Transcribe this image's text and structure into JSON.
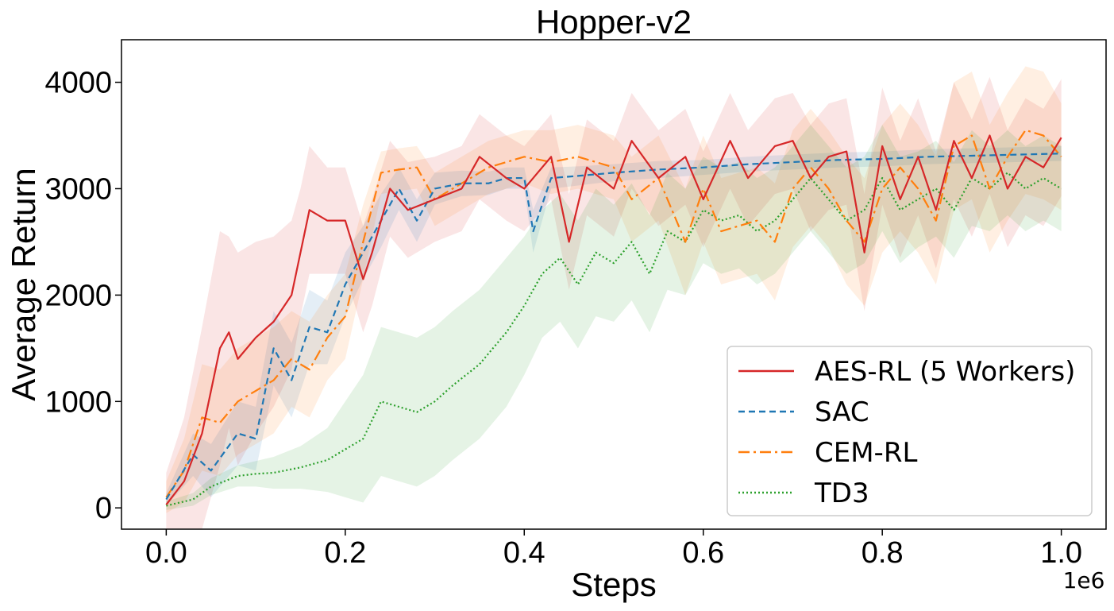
{
  "chart_data": {
    "type": "line",
    "title": "Hopper-v2",
    "xlabel": "Steps",
    "ylabel": "Average Return",
    "x_offset_label": "1e6",
    "xlim": [
      -0.05,
      1.05
    ],
    "ylim": [
      -200,
      4400
    ],
    "x_ticks": [
      0.0,
      0.2,
      0.4,
      0.6,
      0.8,
      1.0
    ],
    "x_tick_labels": [
      "0.0",
      "0.2",
      "0.4",
      "0.6",
      "0.8",
      "1.0"
    ],
    "y_ticks": [
      0,
      1000,
      2000,
      3000,
      4000
    ],
    "y_tick_labels": [
      "0",
      "1000",
      "2000",
      "3000",
      "4000"
    ],
    "grid": false,
    "legend_position": "lower-right",
    "series": [
      {
        "name": "AES-RL (5 Workers)",
        "color": "#d62728",
        "dash": "solid",
        "x": [
          0.0,
          0.02,
          0.04,
          0.06,
          0.07,
          0.08,
          0.1,
          0.12,
          0.14,
          0.15,
          0.16,
          0.18,
          0.2,
          0.22,
          0.23,
          0.25,
          0.27,
          0.3,
          0.33,
          0.35,
          0.38,
          0.4,
          0.43,
          0.45,
          0.47,
          0.5,
          0.52,
          0.55,
          0.58,
          0.6,
          0.63,
          0.65,
          0.68,
          0.7,
          0.72,
          0.74,
          0.76,
          0.78,
          0.8,
          0.82,
          0.84,
          0.86,
          0.88,
          0.9,
          0.92,
          0.94,
          0.96,
          0.98,
          1.0
        ],
        "y": [
          30,
          250,
          700,
          1500,
          1650,
          1400,
          1600,
          1750,
          2000,
          2400,
          2800,
          2700,
          2700,
          2150,
          2400,
          3000,
          2800,
          2900,
          3000,
          3300,
          3100,
          3000,
          3300,
          2500,
          3200,
          3000,
          3450,
          3100,
          3300,
          2900,
          3450,
          3100,
          3400,
          3450,
          3100,
          3300,
          3350,
          2400,
          3400,
          2900,
          3300,
          2800,
          3450,
          3100,
          3500,
          3000,
          3300,
          3200,
          3480
        ],
        "band": [
          300,
          600,
          1000,
          1100,
          900,
          1000,
          900,
          800,
          700,
          600,
          600,
          500,
          500,
          500,
          500,
          450,
          450,
          400,
          400,
          400,
          400,
          400,
          400,
          450,
          450,
          450,
          450,
          450,
          450,
          450,
          450,
          450,
          450,
          450,
          500,
          500,
          500,
          550,
          550,
          550,
          550,
          550,
          550,
          550,
          550,
          550,
          550,
          550,
          550
        ]
      },
      {
        "name": "SAC",
        "color": "#1f77b4",
        "dash": "8,5",
        "x": [
          0.0,
          0.03,
          0.05,
          0.08,
          0.1,
          0.12,
          0.14,
          0.16,
          0.18,
          0.2,
          0.22,
          0.24,
          0.26,
          0.28,
          0.3,
          0.33,
          0.36,
          0.38,
          0.4,
          0.41,
          0.43,
          0.46,
          0.5,
          0.55,
          0.6,
          0.65,
          0.7,
          0.75,
          0.8,
          0.85,
          0.9,
          0.95,
          1.0
        ],
        "y": [
          80,
          500,
          350,
          700,
          650,
          1500,
          1200,
          1700,
          1650,
          2100,
          2400,
          2700,
          3000,
          2700,
          3000,
          3050,
          3050,
          3100,
          3100,
          2600,
          3100,
          3120,
          3150,
          3180,
          3200,
          3230,
          3250,
          3270,
          3280,
          3300,
          3310,
          3320,
          3330
        ],
        "band": [
          60,
          200,
          250,
          300,
          300,
          350,
          350,
          350,
          300,
          300,
          250,
          250,
          200,
          200,
          150,
          120,
          110,
          100,
          100,
          200,
          100,
          90,
          80,
          80,
          70,
          70,
          70,
          70,
          70,
          70,
          70,
          70,
          70
        ]
      },
      {
        "name": "CEM-RL",
        "color": "#ff7f0e",
        "dash": "14,5,3,5",
        "x": [
          0.0,
          0.02,
          0.04,
          0.06,
          0.08,
          0.1,
          0.12,
          0.14,
          0.16,
          0.18,
          0.2,
          0.22,
          0.24,
          0.26,
          0.28,
          0.3,
          0.33,
          0.36,
          0.4,
          0.43,
          0.46,
          0.5,
          0.52,
          0.55,
          0.58,
          0.6,
          0.62,
          0.64,
          0.66,
          0.68,
          0.7,
          0.72,
          0.74,
          0.76,
          0.78,
          0.8,
          0.82,
          0.84,
          0.86,
          0.88,
          0.9,
          0.92,
          0.94,
          0.96,
          0.98,
          1.0
        ],
        "y": [
          100,
          350,
          850,
          800,
          1000,
          1100,
          1200,
          1400,
          1300,
          1600,
          1800,
          2500,
          3150,
          3180,
          3200,
          2900,
          3050,
          3200,
          3300,
          3250,
          3300,
          3200,
          2900,
          3100,
          2500,
          3000,
          2600,
          2650,
          2700,
          2500,
          3000,
          3200,
          3000,
          2700,
          2500,
          3000,
          3200,
          3000,
          2700,
          3400,
          3500,
          3000,
          3300,
          3550,
          3500,
          3300
        ],
        "band": [
          150,
          300,
          500,
          500,
          500,
          500,
          500,
          450,
          450,
          400,
          400,
          350,
          200,
          200,
          200,
          250,
          250,
          250,
          250,
          300,
          300,
          300,
          400,
          400,
          500,
          500,
          500,
          500,
          500,
          550,
          550,
          550,
          550,
          600,
          600,
          600,
          600,
          600,
          600,
          600,
          600,
          600,
          600,
          600,
          600,
          500
        ]
      },
      {
        "name": "TD3",
        "color": "#2ca02c",
        "dash": "2,3",
        "x": [
          0.0,
          0.03,
          0.05,
          0.08,
          0.1,
          0.12,
          0.15,
          0.18,
          0.2,
          0.22,
          0.24,
          0.26,
          0.28,
          0.3,
          0.32,
          0.35,
          0.38,
          0.4,
          0.42,
          0.44,
          0.46,
          0.48,
          0.5,
          0.52,
          0.54,
          0.56,
          0.58,
          0.6,
          0.62,
          0.64,
          0.66,
          0.68,
          0.7,
          0.72,
          0.74,
          0.76,
          0.78,
          0.8,
          0.82,
          0.84,
          0.86,
          0.88,
          0.9,
          0.92,
          0.94,
          0.96,
          0.98,
          1.0
        ],
        "y": [
          20,
          80,
          200,
          300,
          320,
          330,
          380,
          450,
          550,
          650,
          1000,
          950,
          900,
          1000,
          1150,
          1350,
          1650,
          1900,
          2200,
          2350,
          2100,
          2400,
          2300,
          2500,
          2200,
          2600,
          2500,
          2800,
          2700,
          2750,
          2600,
          2700,
          2900,
          3100,
          2900,
          2700,
          2800,
          3100,
          2800,
          2900,
          3000,
          2800,
          3100,
          3000,
          3150,
          3000,
          3100,
          3000
        ],
        "band": [
          40,
          60,
          80,
          100,
          120,
          150,
          200,
          300,
          450,
          600,
          700,
          700,
          700,
          700,
          700,
          700,
          700,
          650,
          600,
          600,
          600,
          600,
          550,
          550,
          550,
          550,
          500,
          500,
          500,
          500,
          500,
          500,
          500,
          500,
          500,
          500,
          500,
          500,
          500,
          450,
          450,
          450,
          450,
          400,
          400,
          400,
          400,
          400
        ]
      }
    ]
  }
}
